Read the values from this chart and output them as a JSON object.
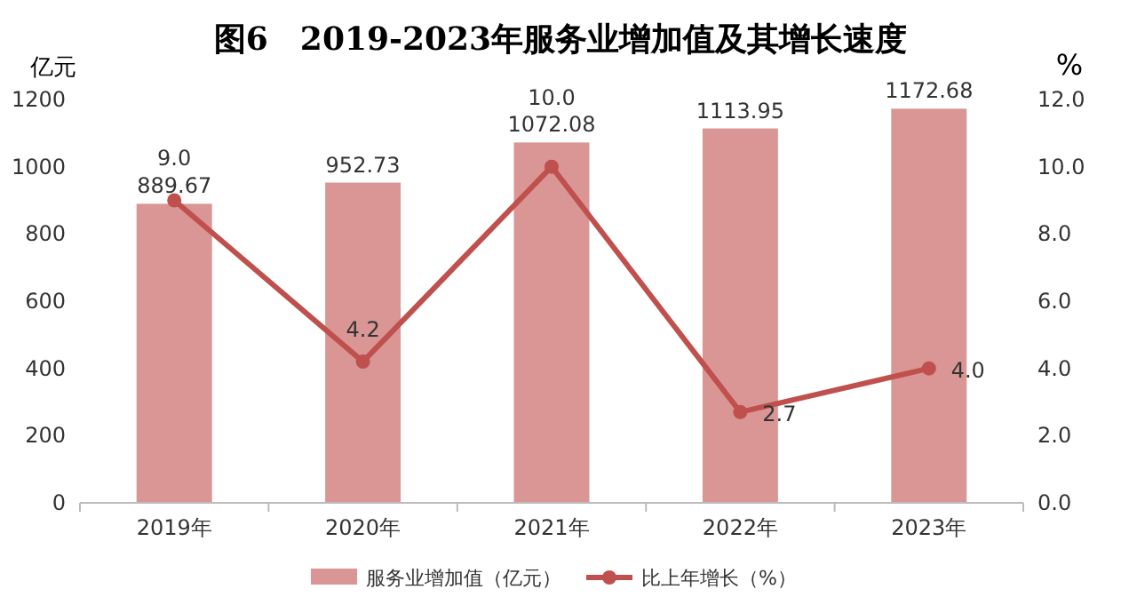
{
  "chart_data": {
    "type": "bar",
    "title": "图6　2019-2023年服务业增加值及其增长速度",
    "ylabel": "亿元",
    "y2label": "%",
    "categories": [
      "2019年",
      "2020年",
      "2021年",
      "2022年",
      "2023年"
    ],
    "series": [
      {
        "name": "服务业增加值（亿元）",
        "color": "#d99694",
        "values": [
          889.67,
          952.73,
          1072.08,
          1113.95,
          1172.68
        ],
        "value_labels": [
          "889.67",
          "952.73",
          "1072.08",
          "1113.95",
          "1172.68"
        ]
      },
      {
        "name": "比上年增长（%）",
        "type": "line",
        "axis": "y2",
        "color": "#c0504d",
        "values": [
          9.0,
          4.2,
          10.0,
          2.7,
          4.0
        ],
        "value_labels": [
          "9.0",
          "4.2",
          "10.0",
          "2.7",
          "4.0"
        ]
      }
    ],
    "ylim": [
      0,
      1200
    ],
    "yticks": [
      0,
      200,
      400,
      600,
      800,
      1000,
      1200
    ],
    "y2lim": [
      0,
      12
    ],
    "y2ticks": [
      {
        "value": 0,
        "label": "0.0"
      },
      {
        "value": 2,
        "label": "2.0"
      },
      {
        "value": 4,
        "label": "4.0"
      },
      {
        "value": 6,
        "label": "6.0"
      },
      {
        "value": 8,
        "label": "8.0"
      },
      {
        "value": 10,
        "label": "10.0"
      },
      {
        "value": 12,
        "label": "12.0"
      }
    ],
    "legend": "bottom",
    "marker": "circle",
    "line_style": "solid",
    "grid": false
  }
}
